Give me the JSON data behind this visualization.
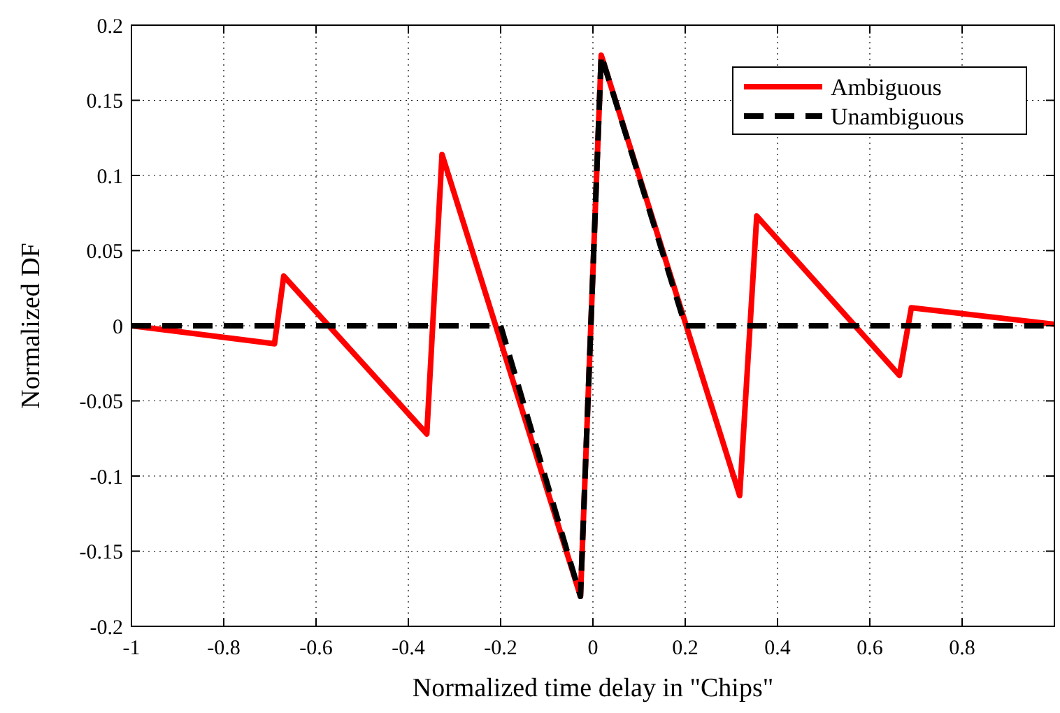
{
  "chart_data": {
    "type": "line",
    "xlabel": "Normalized time delay in \"Chips\"",
    "ylabel": "Normalized DF",
    "xlim": [
      -1,
      1
    ],
    "xticks": [
      -1,
      -0.8,
      -0.6,
      -0.4,
      -0.2,
      0,
      0.2,
      0.4,
      0.6,
      0.8,
      {
        "value": 1,
        "label": null
      }
    ],
    "ylim": [
      -0.2,
      0.2
    ],
    "yticks": [
      -0.2,
      -0.15,
      -0.1,
      -0.05,
      0,
      0.05,
      0.1,
      0.15,
      0.2
    ],
    "grid": true,
    "legend": "top right",
    "series": [
      {
        "name": "Ambiguous",
        "color": "#ff0000",
        "line_style": "solid",
        "x": [
          -1,
          -0.69,
          -0.67,
          -0.36,
          -0.327,
          -0.027,
          0.018,
          0.318,
          0.355,
          0.664,
          0.69,
          1
        ],
        "values": [
          0,
          -0.012,
          0.033,
          -0.072,
          0.114,
          -0.18,
          0.18,
          -0.113,
          0.073,
          -0.033,
          0.012,
          0.001
        ]
      },
      {
        "name": "Unambiguous",
        "color": "#000000",
        "line_style": "dashed",
        "x": [
          -1,
          -0.2,
          -0.027,
          0.018,
          0.2,
          1
        ],
        "values": [
          0,
          0,
          -0.18,
          0.18,
          0,
          0
        ]
      }
    ]
  }
}
